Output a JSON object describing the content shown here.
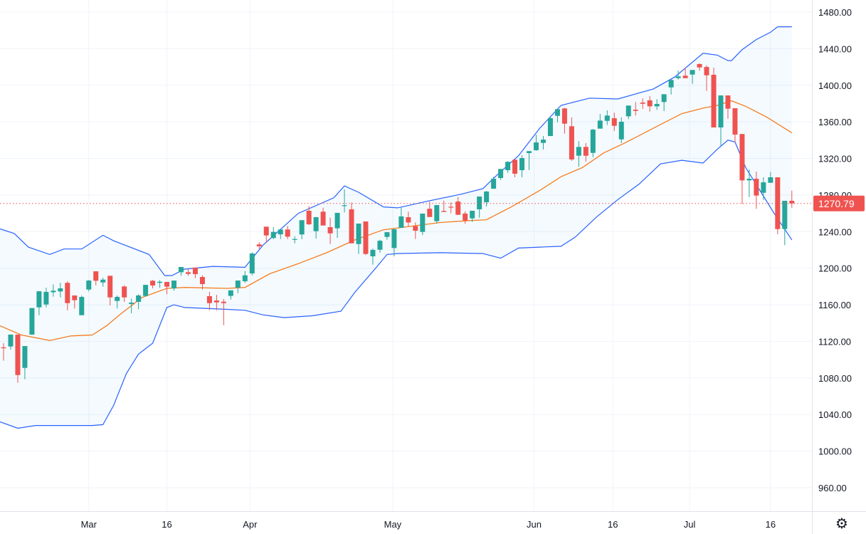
{
  "chart_data": {
    "type": "candlestick",
    "title": "",
    "xlabel": "",
    "ylabel": "",
    "ylim": [
      960,
      1480
    ],
    "y_ticks": [
      "960.00",
      "1000.00",
      "1040.00",
      "1080.00",
      "1120.00",
      "1160.00",
      "1200.00",
      "1240.00",
      "1280.00",
      "1320.00",
      "1360.00",
      "1400.00",
      "1440.00",
      "1480.00"
    ],
    "x_ticks": [
      {
        "label": "Mar",
        "bar": 12
      },
      {
        "label": "16",
        "bar": 23
      },
      {
        "label": "Apr",
        "bar": 34.7
      },
      {
        "label": "May",
        "bar": 54.8
      },
      {
        "label": "Jun",
        "bar": 74.7
      },
      {
        "label": "16",
        "bar": 85.8
      },
      {
        "label": "Jul",
        "bar": 96.6
      },
      {
        "label": "16",
        "bar": 108
      }
    ],
    "grid": true,
    "ohlc_fields": [
      "open",
      "high",
      "low",
      "close"
    ],
    "candles": [
      [
        1113.5,
        1118,
        1099,
        1112.5
      ],
      [
        1114.4,
        1127.4,
        1111,
        1127.4
      ],
      [
        1127.4,
        1127.4,
        1074.7,
        1083.2
      ],
      [
        1091,
        1114.9,
        1078.6,
        1114.9
      ],
      [
        1127.4,
        1156.4,
        1127.4,
        1156.4
      ],
      [
        1157.2,
        1174.8,
        1148.6,
        1174.8
      ],
      [
        1160.3,
        1178.7,
        1157.2,
        1174.1
      ],
      [
        1173.7,
        1182.4,
        1168.9,
        1175.4
      ],
      [
        1174.6,
        1184,
        1168.1,
        1178
      ],
      [
        1184,
        1185.7,
        1154,
        1161.8
      ],
      [
        1170.2,
        1170.2,
        1155.9,
        1165
      ],
      [
        1148.6,
        1170,
        1148.6,
        1168.6
      ],
      [
        1176.7,
        1187,
        1174.6,
        1186.5
      ],
      [
        1196.6,
        1196.6,
        1181.3,
        1186.3
      ],
      [
        1184.4,
        1189.6,
        1179.8,
        1187.5
      ],
      [
        1191.7,
        1191.7,
        1159.3,
        1168.1
      ],
      [
        1164.2,
        1170.2,
        1155.9,
        1168.6
      ],
      [
        1180,
        1181.3,
        1163.2,
        1168.1
      ],
      [
        1160.9,
        1166.8,
        1150.7,
        1162.4
      ],
      [
        1163.2,
        1171.5,
        1155.2,
        1170.2
      ],
      [
        1169.7,
        1181.8,
        1168.9,
        1181.8
      ],
      [
        1186.3,
        1187,
        1178,
        1181.1
      ],
      [
        1184,
        1187,
        1178.5,
        1185.2
      ],
      [
        1185,
        1185,
        1171.5,
        1179.8
      ],
      [
        1177.9,
        1186.5,
        1175.4,
        1186.5
      ],
      [
        1195.6,
        1201.3,
        1191.7,
        1201.3
      ],
      [
        1195.6,
        1199.5,
        1191.7,
        1193.8
      ],
      [
        1200.7,
        1200.7,
        1189.1,
        1193.5
      ],
      [
        1190.4,
        1192.2,
        1176.6,
        1182.6
      ],
      [
        1169.4,
        1174.1,
        1154,
        1161.8
      ],
      [
        1164.7,
        1170.9,
        1154,
        1162.6
      ],
      [
        1163.4,
        1166.3,
        1137.7,
        1161.8
      ],
      [
        1169.7,
        1175.8,
        1165.7,
        1175.8
      ],
      [
        1178.7,
        1186.5,
        1172.7,
        1186.5
      ],
      [
        1185.7,
        1196.9,
        1184,
        1192.2
      ],
      [
        1194.3,
        1217.4,
        1192.2,
        1216.1
      ],
      [
        1226,
        1228.5,
        1221.3,
        1223.9
      ],
      [
        1245.4,
        1245.4,
        1228,
        1235.8
      ],
      [
        1233,
        1244.9,
        1231.7,
        1239.7
      ],
      [
        1237,
        1243,
        1231.9,
        1242.3
      ],
      [
        1242.3,
        1246.2,
        1231.9,
        1234.5
      ],
      [
        1231.4,
        1235,
        1227.2,
        1231.9
      ],
      [
        1236.9,
        1252.5,
        1231.7,
        1252.5
      ],
      [
        1262.8,
        1268,
        1247.2,
        1248
      ],
      [
        1240.5,
        1255.8,
        1232.4,
        1255.8
      ],
      [
        1261.8,
        1266.1,
        1246.7,
        1246.7
      ],
      [
        1244.9,
        1255.2,
        1226.4,
        1238.1
      ],
      [
        1243.6,
        1260.5,
        1233.2,
        1260.5
      ],
      [
        1268.4,
        1286.2,
        1261,
        1268.8
      ],
      [
        1264.4,
        1271.9,
        1227.2,
        1227.2
      ],
      [
        1226.4,
        1248.8,
        1215.6,
        1248.8
      ],
      [
        1251.1,
        1251.1,
        1214.3,
        1215.6
      ],
      [
        1213,
        1221.5,
        1203.9,
        1220
      ],
      [
        1220.2,
        1231.1,
        1216.9,
        1230
      ],
      [
        1234.2,
        1239.4,
        1231.1,
        1239.4
      ],
      [
        1222.1,
        1243.3,
        1213,
        1242.6
      ],
      [
        1244.1,
        1266.1,
        1244.1,
        1256.6
      ],
      [
        1255.8,
        1261.8,
        1246,
        1250
      ],
      [
        1246,
        1250.1,
        1231.9,
        1241
      ],
      [
        1239.7,
        1259.7,
        1236.3,
        1259.7
      ],
      [
        1265,
        1272.7,
        1256,
        1256
      ],
      [
        1251.4,
        1269,
        1248.8,
        1269
      ],
      [
        1262.6,
        1273.9,
        1261.5,
        1261.5
      ],
      [
        1267.2,
        1272.1,
        1260,
        1266.7
      ],
      [
        1272.9,
        1277.8,
        1258.4,
        1258.4
      ],
      [
        1259.7,
        1262.2,
        1248.6,
        1252.2
      ],
      [
        1254.5,
        1262.8,
        1250.6,
        1262.8
      ],
      [
        1264.4,
        1278.4,
        1255.2,
        1278.4
      ],
      [
        1272.1,
        1284.5,
        1267.5,
        1283.8
      ],
      [
        1286.9,
        1300,
        1286.9,
        1297.8
      ],
      [
        1298.6,
        1308.5,
        1296.5,
        1308.5
      ],
      [
        1307.2,
        1317,
        1304.3,
        1316.3
      ],
      [
        1318.6,
        1319.4,
        1299.4,
        1303.3
      ],
      [
        1307.2,
        1323.3,
        1299.4,
        1320.4
      ],
      [
        1325.9,
        1328,
        1307.2,
        1328
      ],
      [
        1329,
        1345.9,
        1328.4,
        1337.5
      ],
      [
        1337,
        1344.5,
        1329.8,
        1340.6
      ],
      [
        1344.5,
        1366.1,
        1344.5,
        1364
      ],
      [
        1366.6,
        1373.9,
        1359.6,
        1373.9
      ],
      [
        1374.7,
        1375.3,
        1347.1,
        1358
      ],
      [
        1355.2,
        1364.8,
        1317.3,
        1318.9
      ],
      [
        1323,
        1338.9,
        1311,
        1332.6
      ],
      [
        1332.6,
        1336.8,
        1316.7,
        1323
      ],
      [
        1326.1,
        1352.3,
        1321.4,
        1351.5
      ],
      [
        1352.6,
        1368.7,
        1352.6,
        1361.4
      ],
      [
        1361.1,
        1372.6,
        1356.5,
        1366.9
      ],
      [
        1364,
        1370,
        1350,
        1355.7
      ],
      [
        1340.9,
        1364.8,
        1336.8,
        1360.1
      ],
      [
        1366.1,
        1377.8,
        1363,
        1377.8
      ],
      [
        1373.3,
        1381.7,
        1366.9,
        1372
      ],
      [
        1381.1,
        1385.6,
        1374.2,
        1379.8
      ],
      [
        1383.5,
        1388.1,
        1371.2,
        1377
      ],
      [
        1377,
        1384.8,
        1373.1,
        1379.6
      ],
      [
        1381.7,
        1390.2,
        1371.8,
        1390.2
      ],
      [
        1397.7,
        1406.5,
        1389.9,
        1405.8
      ],
      [
        1407.8,
        1416.2,
        1406.3,
        1409.7
      ],
      [
        1410.5,
        1419.3,
        1407.8,
        1407.8
      ],
      [
        1411.7,
        1416.7,
        1401.6,
        1416.7
      ],
      [
        1423.2,
        1424,
        1415.9,
        1419.5
      ],
      [
        1420,
        1421.9,
        1393.8,
        1410.9
      ],
      [
        1411.5,
        1419.3,
        1353.9,
        1353.9
      ],
      [
        1353.9,
        1388.9,
        1334.2,
        1388.9
      ],
      [
        1388.9,
        1388.9,
        1363.5,
        1374.4
      ],
      [
        1374.9,
        1374.9,
        1337.5,
        1346.1
      ],
      [
        1346.7,
        1346.7,
        1270,
        1296
      ],
      [
        1296,
        1307.7,
        1277.8,
        1297.8
      ],
      [
        1297.8,
        1305.6,
        1264.9,
        1279.4
      ],
      [
        1282.5,
        1299.4,
        1274.7,
        1293.9
      ],
      [
        1293.4,
        1305.1,
        1293.4,
        1299.4
      ],
      [
        1299.4,
        1299.4,
        1237.1,
        1242.8
      ],
      [
        1242.8,
        1273.7,
        1225.2,
        1273.7
      ],
      [
        1273.7,
        1284.8,
        1266.1,
        1270.79
      ]
    ],
    "bollinger_upper": [
      [
        -0.5,
        1243
      ],
      [
        1.5,
        1238
      ],
      [
        3.5,
        1223
      ],
      [
        6.5,
        1215
      ],
      [
        8.5,
        1221
      ],
      [
        11,
        1221
      ],
      [
        14,
        1236
      ],
      [
        15.5,
        1230
      ],
      [
        20.5,
        1215
      ],
      [
        22.7,
        1192
      ],
      [
        23.7,
        1192
      ],
      [
        25.5,
        1199
      ],
      [
        29.5,
        1202
      ],
      [
        34,
        1201
      ],
      [
        36.5,
        1225
      ],
      [
        41.5,
        1260
      ],
      [
        46.5,
        1277
      ],
      [
        48,
        1290
      ],
      [
        50,
        1283
      ],
      [
        53.5,
        1267
      ],
      [
        55.5,
        1266
      ],
      [
        59.5,
        1273
      ],
      [
        64.5,
        1281
      ],
      [
        67.5,
        1287
      ],
      [
        69.5,
        1302
      ],
      [
        72.5,
        1323
      ],
      [
        75.5,
        1353
      ],
      [
        78.5,
        1378
      ],
      [
        82.5,
        1386
      ],
      [
        86.5,
        1385
      ],
      [
        91.5,
        1396
      ],
      [
        94.5,
        1409
      ],
      [
        98.5,
        1435
      ],
      [
        100.5,
        1433
      ],
      [
        102,
        1427
      ],
      [
        102.5,
        1427
      ],
      [
        104,
        1439
      ],
      [
        106,
        1450
      ],
      [
        108,
        1458
      ],
      [
        109,
        1464
      ],
      [
        111,
        1464
      ]
    ],
    "moving_average": [
      [
        -0.5,
        1137
      ],
      [
        2.5,
        1127
      ],
      [
        6.5,
        1121
      ],
      [
        9.5,
        1126
      ],
      [
        12.5,
        1127
      ],
      [
        14.5,
        1137
      ],
      [
        16.5,
        1150
      ],
      [
        19.5,
        1168
      ],
      [
        23,
        1178
      ],
      [
        25.5,
        1179
      ],
      [
        31.5,
        1178
      ],
      [
        34,
        1179
      ],
      [
        37.5,
        1194
      ],
      [
        41.5,
        1205
      ],
      [
        45.5,
        1217
      ],
      [
        49.5,
        1231
      ],
      [
        53.5,
        1242
      ],
      [
        57.5,
        1246
      ],
      [
        61.5,
        1250
      ],
      [
        65.5,
        1252
      ],
      [
        68,
        1253
      ],
      [
        71.5,
        1267
      ],
      [
        75.5,
        1285
      ],
      [
        78.5,
        1300
      ],
      [
        81.5,
        1310
      ],
      [
        84.5,
        1326
      ],
      [
        87.5,
        1337
      ],
      [
        91.5,
        1353
      ],
      [
        95.5,
        1369
      ],
      [
        98.5,
        1375
      ],
      [
        100.5,
        1378
      ],
      [
        102.5,
        1383
      ],
      [
        104.5,
        1377
      ],
      [
        107.5,
        1365
      ],
      [
        111,
        1348
      ]
    ],
    "bollinger_lower": [
      [
        -0.5,
        1032
      ],
      [
        2,
        1025
      ],
      [
        4.5,
        1028
      ],
      [
        7,
        1028
      ],
      [
        12.5,
        1028
      ],
      [
        14,
        1029
      ],
      [
        15.5,
        1050
      ],
      [
        17.3,
        1085
      ],
      [
        19,
        1106
      ],
      [
        21,
        1118
      ],
      [
        23,
        1157
      ],
      [
        24,
        1160
      ],
      [
        25.5,
        1157
      ],
      [
        31.5,
        1155
      ],
      [
        34,
        1154
      ],
      [
        36.5,
        1149
      ],
      [
        39.5,
        1146
      ],
      [
        43.5,
        1148
      ],
      [
        47.5,
        1153
      ],
      [
        49.5,
        1174
      ],
      [
        52.5,
        1201
      ],
      [
        54,
        1215
      ],
      [
        55.5,
        1216
      ],
      [
        61.5,
        1217
      ],
      [
        67.5,
        1216
      ],
      [
        70,
        1211
      ],
      [
        72.5,
        1222
      ],
      [
        75.5,
        1223
      ],
      [
        78.5,
        1224
      ],
      [
        80.5,
        1234
      ],
      [
        83.5,
        1256
      ],
      [
        86.5,
        1275
      ],
      [
        89.5,
        1292
      ],
      [
        92.5,
        1314
      ],
      [
        95.5,
        1318
      ],
      [
        98.5,
        1315
      ],
      [
        100.5,
        1330
      ],
      [
        102,
        1340
      ],
      [
        103,
        1338
      ],
      [
        104.5,
        1310
      ],
      [
        106.5,
        1285
      ],
      [
        108.5,
        1260
      ],
      [
        111,
        1231
      ]
    ],
    "last_price": 1270.79,
    "last_price_label": "1270.79",
    "colors": {
      "up": "#26a69a",
      "down": "#ef5350",
      "bands": "#2962ff",
      "band_fill": "#2196f3",
      "moving_average": "#f57c1f",
      "grid": "#f0f3fa",
      "text": "#131722"
    }
  },
  "toolbar": {
    "settings_icon": "gear-icon",
    "settings_glyph": "⚙"
  }
}
